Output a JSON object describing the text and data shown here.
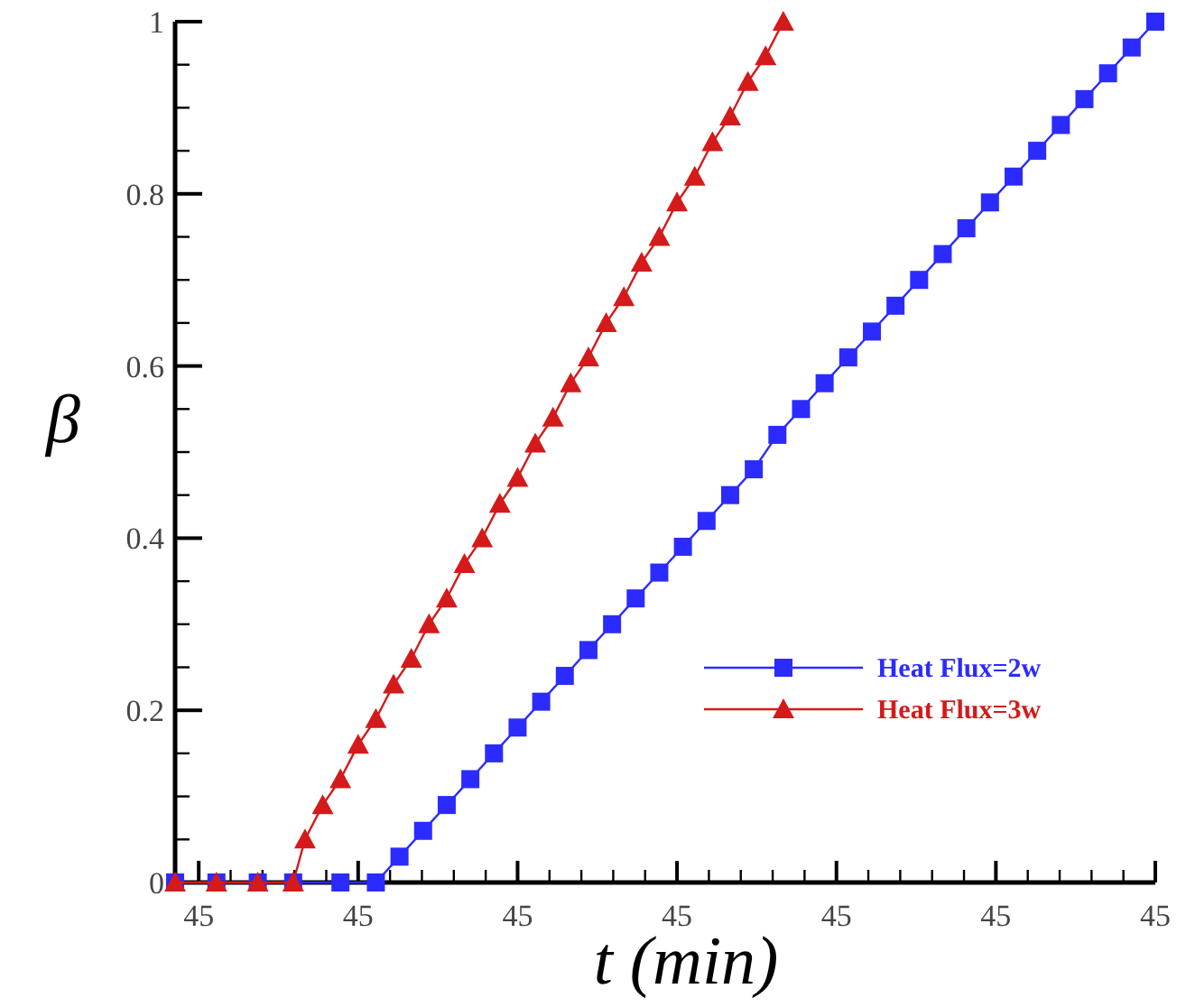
{
  "chart_data": {
    "type": "line",
    "xlabel": "t (min)",
    "ylabel": "β",
    "categories": [
      null,
      null,
      null,
      null,
      "45",
      null,
      null,
      null,
      null,
      null,
      null,
      null,
      null,
      null,
      null,
      null,
      null,
      null,
      null,
      null,
      null,
      null,
      null,
      null,
      null,
      null,
      null,
      null,
      null,
      null,
      null,
      "45",
      null,
      null,
      null,
      null,
      null,
      null,
      null,
      null,
      null,
      null,
      null,
      null,
      null,
      null,
      null,
      null,
      null,
      null,
      null,
      null,
      null,
      null,
      null,
      null,
      null,
      null,
      "45",
      null,
      null,
      null,
      null,
      null,
      null,
      null,
      null,
      null,
      null,
      null,
      null,
      null,
      null,
      null,
      null,
      null,
      null,
      null,
      null,
      null,
      null,
      null,
      null,
      null,
      null,
      "45",
      null,
      null,
      null,
      null,
      null,
      null,
      null,
      null,
      null,
      null,
      null,
      null,
      null,
      null,
      null,
      null,
      null,
      null,
      null,
      null,
      null,
      null,
      null,
      null,
      null,
      null,
      "45",
      null,
      null,
      null,
      null,
      null,
      null,
      null,
      null,
      null,
      null,
      null,
      null,
      null,
      null,
      null,
      null,
      null,
      null,
      null,
      null,
      null,
      null,
      null,
      null,
      null,
      null,
      "45",
      null,
      null,
      null,
      null,
      null,
      null,
      null,
      null,
      null,
      null,
      null,
      null,
      null,
      null,
      null,
      null,
      null,
      null,
      null,
      null,
      null,
      null,
      null,
      null,
      null,
      null,
      "45"
    ],
    "ylim": [
      0,
      1
    ],
    "yticks": [
      0,
      {
        "value": 0.05,
        "label": null
      },
      {
        "value": 0.1,
        "label": null
      },
      {
        "value": 0.15,
        "label": null
      },
      0.2,
      {
        "value": 0.25,
        "label": null
      },
      {
        "value": 0.3,
        "label": null
      },
      {
        "value": 0.35,
        "label": null
      },
      0.4,
      {
        "value": 0.45,
        "label": null
      },
      {
        "value": 0.5,
        "label": null
      },
      {
        "value": 0.55,
        "label": null
      },
      0.6,
      {
        "value": 0.65,
        "label": null
      },
      {
        "value": 0.7,
        "label": null
      },
      {
        "value": 0.75,
        "label": null
      },
      0.8,
      {
        "value": 0.85,
        "label": null
      },
      {
        "value": 0.9,
        "label": null
      },
      {
        "value": 0.95,
        "label": null
      },
      1
    ],
    "grid": false,
    "legend": "right",
    "line_style": "solid",
    "series": [
      {
        "name": "Heat Flux=2w",
        "color": "#2b2bff",
        "marker": "square",
        "values": [
          0,
          null,
          null,
          null,
          null,
          null,
          null,
          0,
          null,
          null,
          null,
          null,
          null,
          null,
          0,
          null,
          null,
          null,
          null,
          null,
          0,
          null,
          null,
          null,
          null,
          null,
          null,
          null,
          0,
          null,
          null,
          null,
          null,
          null,
          0,
          null,
          null,
          null,
          0.03,
          null,
          null,
          null,
          0.06,
          null,
          null,
          null,
          0.09,
          null,
          null,
          null,
          0.12,
          null,
          null,
          null,
          0.15,
          null,
          null,
          null,
          0.18,
          null,
          null,
          null,
          0.21,
          null,
          null,
          null,
          0.24,
          null,
          null,
          null,
          0.27,
          null,
          null,
          null,
          0.3,
          null,
          null,
          null,
          0.33,
          null,
          null,
          null,
          0.36,
          null,
          null,
          null,
          0.39,
          null,
          null,
          null,
          0.42,
          null,
          null,
          null,
          0.45,
          null,
          null,
          null,
          0.48,
          null,
          null,
          null,
          0.52,
          null,
          null,
          null,
          0.55,
          null,
          null,
          null,
          0.58,
          null,
          null,
          null,
          0.61,
          null,
          null,
          null,
          0.64,
          null,
          null,
          null,
          0.67,
          null,
          null,
          null,
          0.7,
          null,
          null,
          null,
          0.73,
          null,
          null,
          null,
          0.76,
          null,
          null,
          null,
          0.79,
          null,
          null,
          null,
          0.82,
          null,
          null,
          null,
          0.85,
          null,
          null,
          null,
          0.88,
          null,
          null,
          null,
          0.91,
          null,
          null,
          null,
          0.94,
          null,
          null,
          null,
          0.97,
          null,
          null,
          null,
          1
        ]
      },
      {
        "name": "Heat Flux=3w",
        "color": "#d41a1a",
        "marker": "triangle",
        "values": [
          0,
          null,
          null,
          null,
          null,
          null,
          null,
          0,
          null,
          null,
          null,
          null,
          null,
          null,
          0,
          null,
          null,
          null,
          null,
          null,
          0,
          null,
          0.05,
          null,
          null,
          0.09,
          null,
          null,
          0.12,
          null,
          null,
          0.16,
          null,
          null,
          0.19,
          null,
          null,
          0.23,
          null,
          null,
          0.26,
          null,
          null,
          0.3,
          null,
          null,
          0.33,
          null,
          null,
          0.37,
          null,
          null,
          0.4,
          null,
          null,
          0.44,
          null,
          null,
          0.47,
          null,
          null,
          0.51,
          null,
          null,
          0.54,
          null,
          null,
          0.58,
          null,
          null,
          0.61,
          null,
          null,
          0.65,
          null,
          null,
          0.68,
          null,
          null,
          0.72,
          null,
          null,
          0.75,
          null,
          null,
          0.79,
          null,
          null,
          0.82,
          null,
          null,
          0.86,
          null,
          null,
          0.89,
          null,
          null,
          0.93,
          null,
          null,
          0.96,
          null,
          null,
          1,
          null,
          null,
          null,
          null,
          null,
          null,
          null,
          null,
          null,
          null,
          null,
          null,
          null,
          null,
          null,
          null,
          null,
          null,
          null,
          null,
          null,
          null,
          null,
          null,
          null,
          null,
          null,
          null,
          null,
          null,
          null,
          null,
          null,
          null,
          null,
          null,
          null,
          null,
          null,
          null,
          null,
          null,
          null,
          null,
          null,
          null,
          null,
          null,
          null,
          null,
          null,
          null,
          null,
          null,
          null,
          null,
          null,
          null,
          null,
          null,
          null,
          null,
          null
        ]
      }
    ]
  }
}
